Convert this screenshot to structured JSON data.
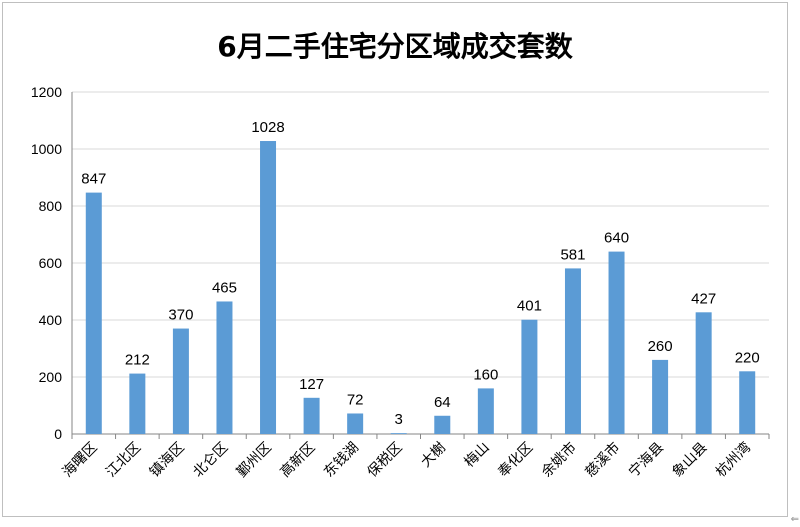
{
  "chart_data": {
    "type": "bar",
    "title": "6月二手住宅分区域成交套数",
    "categories": [
      "海曙区",
      "江北区",
      "镇海区",
      "北仑区",
      "鄞州区",
      "高新区",
      "东钱湖",
      "保税区",
      "大榭",
      "梅山",
      "奉化区",
      "余姚市",
      "慈溪市",
      "宁海县",
      "象山县",
      "杭州湾"
    ],
    "values": [
      847,
      212,
      370,
      465,
      1028,
      127,
      72,
      3,
      64,
      160,
      401,
      581,
      640,
      260,
      427,
      220
    ],
    "y_ticks": [
      "0",
      "200",
      "400",
      "600",
      "800",
      "1000",
      "1200"
    ],
    "ylim": [
      0,
      1200
    ],
    "grid": true,
    "legend": "none",
    "bar_color": "#5b9bd5",
    "grid_color": "#d9d9d9"
  },
  "corner_mark": "⇐"
}
